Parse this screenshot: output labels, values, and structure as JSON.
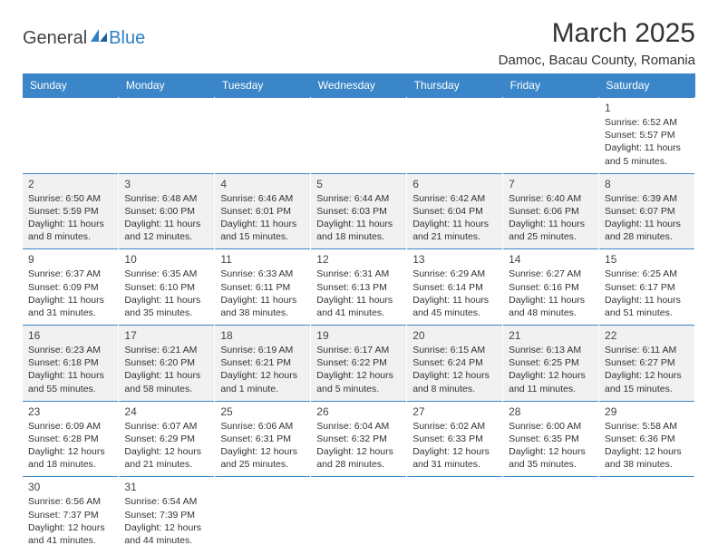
{
  "logo": {
    "word1": "General",
    "word2": "Blue"
  },
  "title": "March 2025",
  "location": "Damoc, Bacau County, Romania",
  "colors": {
    "header_bg": "#3a86c8",
    "header_text": "#ffffff",
    "grey_row": "#f1f1f1",
    "border": "#3a86c8",
    "logo_blue": "#2f7fc2"
  },
  "columns": [
    "Sunday",
    "Monday",
    "Tuesday",
    "Wednesday",
    "Thursday",
    "Friday",
    "Saturday"
  ],
  "weeks": [
    [
      null,
      null,
      null,
      null,
      null,
      null,
      {
        "n": "1",
        "rise": "6:52 AM",
        "set": "5:57 PM",
        "day": "11 hours and 5 minutes."
      }
    ],
    [
      {
        "n": "2",
        "rise": "6:50 AM",
        "set": "5:59 PM",
        "day": "11 hours and 8 minutes."
      },
      {
        "n": "3",
        "rise": "6:48 AM",
        "set": "6:00 PM",
        "day": "11 hours and 12 minutes."
      },
      {
        "n": "4",
        "rise": "6:46 AM",
        "set": "6:01 PM",
        "day": "11 hours and 15 minutes."
      },
      {
        "n": "5",
        "rise": "6:44 AM",
        "set": "6:03 PM",
        "day": "11 hours and 18 minutes."
      },
      {
        "n": "6",
        "rise": "6:42 AM",
        "set": "6:04 PM",
        "day": "11 hours and 21 minutes."
      },
      {
        "n": "7",
        "rise": "6:40 AM",
        "set": "6:06 PM",
        "day": "11 hours and 25 minutes."
      },
      {
        "n": "8",
        "rise": "6:39 AM",
        "set": "6:07 PM",
        "day": "11 hours and 28 minutes."
      }
    ],
    [
      {
        "n": "9",
        "rise": "6:37 AM",
        "set": "6:09 PM",
        "day": "11 hours and 31 minutes."
      },
      {
        "n": "10",
        "rise": "6:35 AM",
        "set": "6:10 PM",
        "day": "11 hours and 35 minutes."
      },
      {
        "n": "11",
        "rise": "6:33 AM",
        "set": "6:11 PM",
        "day": "11 hours and 38 minutes."
      },
      {
        "n": "12",
        "rise": "6:31 AM",
        "set": "6:13 PM",
        "day": "11 hours and 41 minutes."
      },
      {
        "n": "13",
        "rise": "6:29 AM",
        "set": "6:14 PM",
        "day": "11 hours and 45 minutes."
      },
      {
        "n": "14",
        "rise": "6:27 AM",
        "set": "6:16 PM",
        "day": "11 hours and 48 minutes."
      },
      {
        "n": "15",
        "rise": "6:25 AM",
        "set": "6:17 PM",
        "day": "11 hours and 51 minutes."
      }
    ],
    [
      {
        "n": "16",
        "rise": "6:23 AM",
        "set": "6:18 PM",
        "day": "11 hours and 55 minutes."
      },
      {
        "n": "17",
        "rise": "6:21 AM",
        "set": "6:20 PM",
        "day": "11 hours and 58 minutes."
      },
      {
        "n": "18",
        "rise": "6:19 AM",
        "set": "6:21 PM",
        "day": "12 hours and 1 minute."
      },
      {
        "n": "19",
        "rise": "6:17 AM",
        "set": "6:22 PM",
        "day": "12 hours and 5 minutes."
      },
      {
        "n": "20",
        "rise": "6:15 AM",
        "set": "6:24 PM",
        "day": "12 hours and 8 minutes."
      },
      {
        "n": "21",
        "rise": "6:13 AM",
        "set": "6:25 PM",
        "day": "12 hours and 11 minutes."
      },
      {
        "n": "22",
        "rise": "6:11 AM",
        "set": "6:27 PM",
        "day": "12 hours and 15 minutes."
      }
    ],
    [
      {
        "n": "23",
        "rise": "6:09 AM",
        "set": "6:28 PM",
        "day": "12 hours and 18 minutes."
      },
      {
        "n": "24",
        "rise": "6:07 AM",
        "set": "6:29 PM",
        "day": "12 hours and 21 minutes."
      },
      {
        "n": "25",
        "rise": "6:06 AM",
        "set": "6:31 PM",
        "day": "12 hours and 25 minutes."
      },
      {
        "n": "26",
        "rise": "6:04 AM",
        "set": "6:32 PM",
        "day": "12 hours and 28 minutes."
      },
      {
        "n": "27",
        "rise": "6:02 AM",
        "set": "6:33 PM",
        "day": "12 hours and 31 minutes."
      },
      {
        "n": "28",
        "rise": "6:00 AM",
        "set": "6:35 PM",
        "day": "12 hours and 35 minutes."
      },
      {
        "n": "29",
        "rise": "5:58 AM",
        "set": "6:36 PM",
        "day": "12 hours and 38 minutes."
      }
    ],
    [
      {
        "n": "30",
        "rise": "6:56 AM",
        "set": "7:37 PM",
        "day": "12 hours and 41 minutes."
      },
      {
        "n": "31",
        "rise": "6:54 AM",
        "set": "7:39 PM",
        "day": "12 hours and 44 minutes."
      },
      null,
      null,
      null,
      null,
      null
    ]
  ],
  "labels": {
    "sunrise": "Sunrise: ",
    "sunset": "Sunset: ",
    "daylight": "Daylight: "
  },
  "grey_rows": [
    1,
    3
  ]
}
